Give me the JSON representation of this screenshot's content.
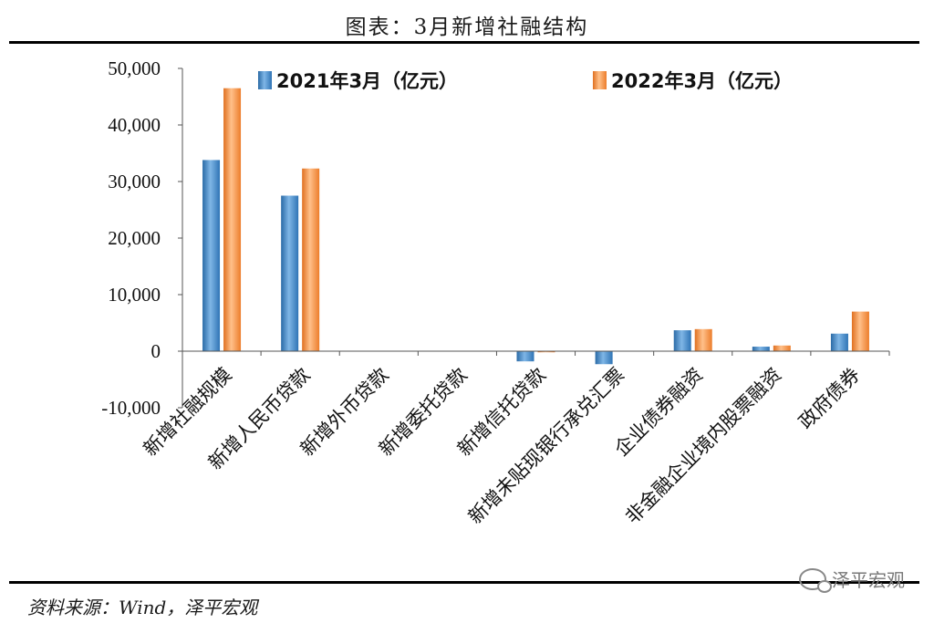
{
  "figure": {
    "title": "图表：3月新增社融结构",
    "source": "资料来源：Wind，泽平宏观",
    "watermark": "泽平宏观"
  },
  "chart_data": {
    "type": "bar",
    "categories": [
      "新增社融规模",
      "新增人民币贷款",
      "新增外币贷款",
      "新增委托贷款",
      "新增信托贷款",
      "新增未贴现银行承兑汇票",
      "企业债券融资",
      "非金融企业境内股票融资",
      "政府债券"
    ],
    "series": [
      {
        "name": "2021年3月（亿元）",
        "color": "#3f86c6",
        "values": [
          33800,
          27500,
          0,
          0,
          -1800,
          -2300,
          3700,
          800,
          3100
        ]
      },
      {
        "name": "2022年3月（亿元）",
        "color": "#f28a30",
        "values": [
          46500,
          32300,
          0,
          0,
          -200,
          0,
          3900,
          1000,
          7000
        ]
      }
    ],
    "ylim": [
      -10000,
      50000
    ],
    "yticks": [
      "-10,000",
      "0",
      "10,000",
      "20,000",
      "30,000",
      "40,000",
      "50,000"
    ],
    "ytick_values": [
      -10000,
      0,
      10000,
      20000,
      30000,
      40000,
      50000
    ],
    "legend_position": "top",
    "grid": false
  }
}
